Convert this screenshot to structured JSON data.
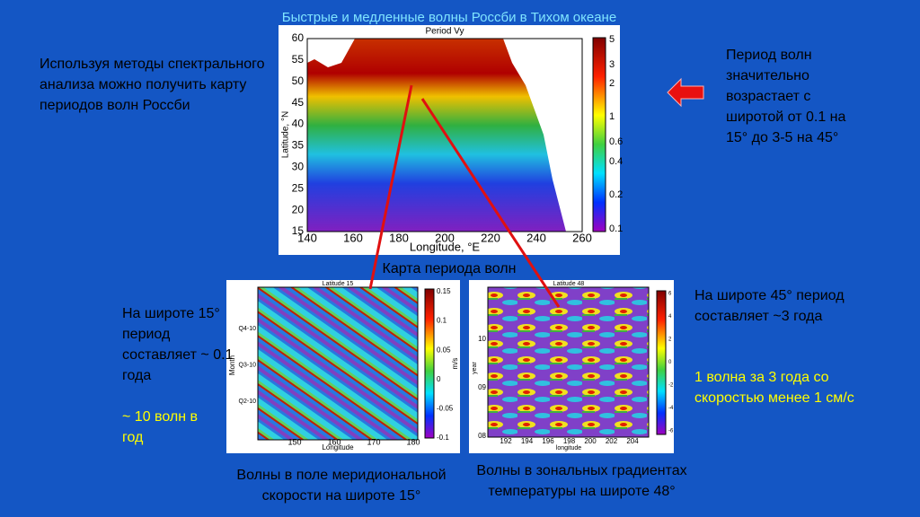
{
  "title": "Быстрые и медленные волны Россби в Тихом океане",
  "left_text": "Используя методы спектрального анализа можно получить карту периодов волн Россби",
  "right_text": "Период волн значительно возрастает с широтой от 0.1 на 15° до 3-5 на 45°",
  "map": {
    "title": "Period Vy",
    "y_label": "Latitude, °N",
    "x_label": "Longitude, °E",
    "y_ticks": [
      "60",
      "55",
      "50",
      "45",
      "40",
      "35",
      "30",
      "25",
      "20",
      "15"
    ],
    "x_ticks": [
      "140",
      "160",
      "180",
      "200",
      "220",
      "240",
      "260"
    ],
    "colorbar_ticks": [
      "5",
      "3",
      "2",
      "1",
      "0.6",
      "0.4",
      "0.2",
      "0.1"
    ],
    "caption": "Карта периода волн"
  },
  "panel_15": {
    "title": "Latitude 15",
    "x_label": "Longitude",
    "y_label": "Month",
    "colorbar_label": "m/s",
    "x_ticks": [
      "150",
      "160",
      "170",
      "180"
    ],
    "y_ticks": [
      "Q4-10",
      "Q3-10",
      "Q2-10"
    ],
    "colorbar_ticks": [
      "0.15",
      "0.1",
      "0.05",
      "0",
      "-0.05",
      "-0.1"
    ]
  },
  "panel_48": {
    "title": "Latitude 48",
    "x_label": "longitude",
    "y_label": "year",
    "x_ticks": [
      "192",
      "194",
      "196",
      "198",
      "200",
      "202",
      "204"
    ],
    "y_ticks": [
      "10",
      "09",
      "08"
    ],
    "colorbar_ticks": [
      "6",
      "4",
      "2",
      "0",
      "-2",
      "-4",
      "-6"
    ]
  },
  "note_15": {
    "text": "На широте 15° период составляет ~ 0.1 года",
    "highlight": "~ 10 волн в год"
  },
  "note_45": {
    "text": "На широте 45° период составляет ~3 года",
    "highlight": "1 волна за 3 года со скоростью менее 1 см/с"
  },
  "caption_15": "Волны в поле меридиональной скорости на широте 15°",
  "caption_48": "Волны в зональных градиентах температуры на широте 48°"
}
